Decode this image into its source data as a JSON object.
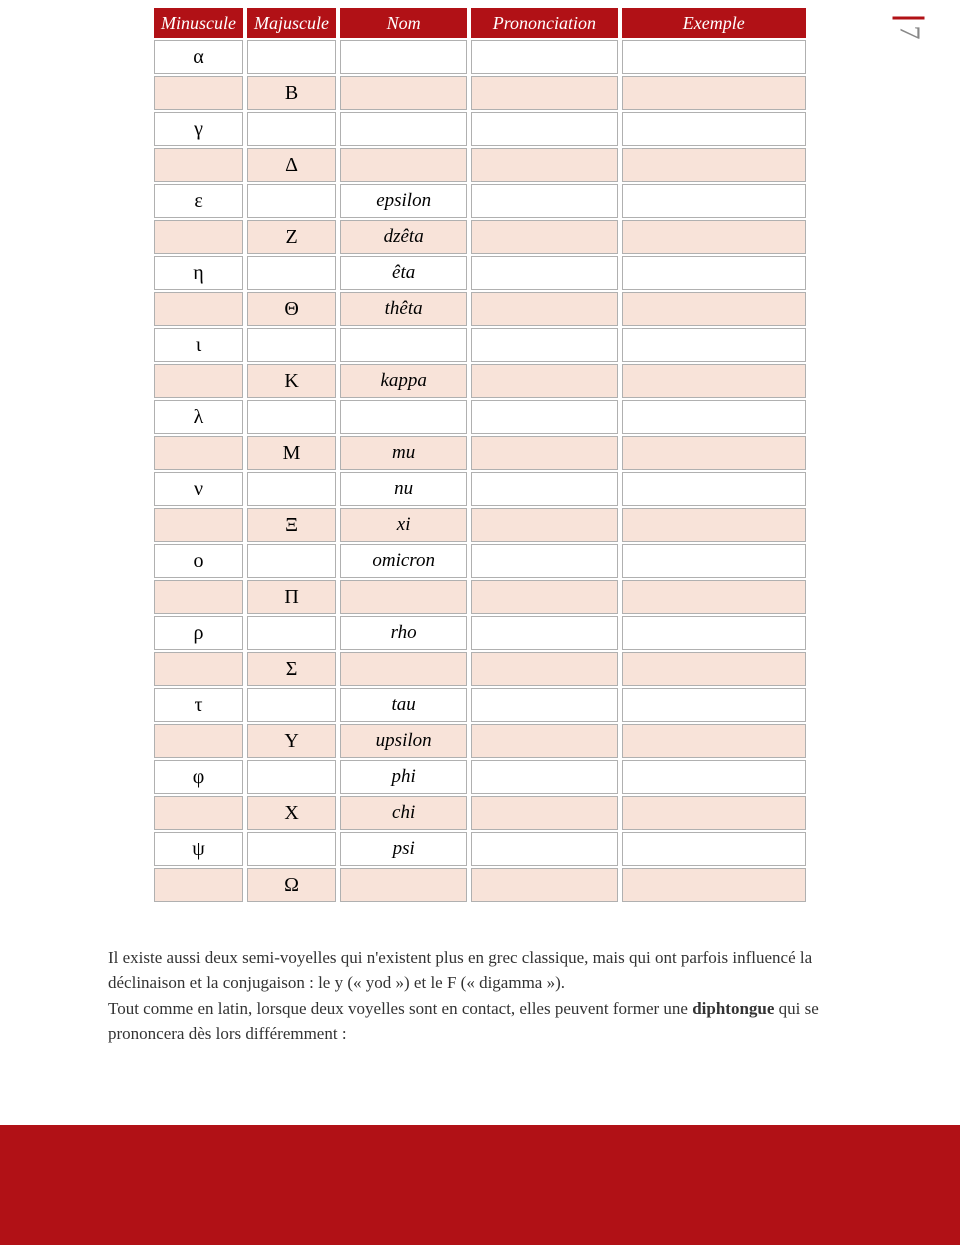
{
  "page_number": "7",
  "colors": {
    "header_bg": "#b11116",
    "header_text": "#ffffff",
    "row_alt_bg": "#f8e3d9",
    "row_bg": "#ffffff",
    "cell_border": "#b0b0b0",
    "banner_bg": "#b11116",
    "page_num_color": "#888888"
  },
  "table": {
    "headers": [
      "Minuscule",
      "Majuscule",
      "Nom",
      "Prononciation",
      "Exemple"
    ],
    "col_widths_pct": [
      14,
      14,
      20,
      23,
      29
    ],
    "rows": [
      {
        "min": "α",
        "maj": "",
        "nom": "",
        "pron": "",
        "ex": ""
      },
      {
        "min": "",
        "maj": "Β",
        "nom": "",
        "pron": "",
        "ex": ""
      },
      {
        "min": "γ",
        "maj": "",
        "nom": "",
        "pron": "",
        "ex": ""
      },
      {
        "min": "",
        "maj": "Δ",
        "nom": "",
        "pron": "",
        "ex": ""
      },
      {
        "min": "ε",
        "maj": "",
        "nom": "epsilon",
        "pron": "",
        "ex": ""
      },
      {
        "min": "",
        "maj": "Ζ",
        "nom": "dzêta",
        "pron": "",
        "ex": ""
      },
      {
        "min": "η",
        "maj": "",
        "nom": "êta",
        "pron": "",
        "ex": ""
      },
      {
        "min": "",
        "maj": "Θ",
        "nom": "thêta",
        "pron": "",
        "ex": ""
      },
      {
        "min": "ι",
        "maj": "",
        "nom": "",
        "pron": "",
        "ex": ""
      },
      {
        "min": "",
        "maj": "Κ",
        "nom": "kappa",
        "pron": "",
        "ex": ""
      },
      {
        "min": "λ",
        "maj": "",
        "nom": "",
        "pron": "",
        "ex": ""
      },
      {
        "min": "",
        "maj": "Μ",
        "nom": "mu",
        "pron": "",
        "ex": ""
      },
      {
        "min": "ν",
        "maj": "",
        "nom": "nu",
        "pron": "",
        "ex": ""
      },
      {
        "min": "",
        "maj": "Ξ",
        "nom": "xi",
        "pron": "",
        "ex": ""
      },
      {
        "min": "ο",
        "maj": "",
        "nom": "omicron",
        "pron": "",
        "ex": ""
      },
      {
        "min": "",
        "maj": "Π",
        "nom": "",
        "pron": "",
        "ex": ""
      },
      {
        "min": "ρ",
        "maj": "",
        "nom": "rho",
        "pron": "",
        "ex": ""
      },
      {
        "min": "",
        "maj": "Σ",
        "nom": "",
        "pron": "",
        "ex": ""
      },
      {
        "min": "τ",
        "maj": "",
        "nom": "tau",
        "pron": "",
        "ex": ""
      },
      {
        "min": "",
        "maj": "Υ",
        "nom": "upsilon",
        "pron": "",
        "ex": ""
      },
      {
        "min": "φ",
        "maj": "",
        "nom": "phi",
        "pron": "",
        "ex": ""
      },
      {
        "min": "",
        "maj": "Χ",
        "nom": "chi",
        "pron": "",
        "ex": ""
      },
      {
        "min": "ψ",
        "maj": "",
        "nom": "psi",
        "pron": "",
        "ex": ""
      },
      {
        "min": "",
        "maj": "Ω",
        "nom": "",
        "pron": "",
        "ex": ""
      }
    ]
  },
  "paragraph": {
    "p1": "Il existe aussi deux semi-voyelles qui n'existent plus en grec classique, mais qui ont parfois influencé la déclinaison et la conjugaison : le y (« yod ») et le F (« digamma »).",
    "p2_1": "Tout comme en latin, lorsque deux voyelles sont en contact, elles peuvent former une ",
    "p2_bold": "diphtongue",
    "p2_2": " qui se prononcera dès lors différemment :"
  }
}
